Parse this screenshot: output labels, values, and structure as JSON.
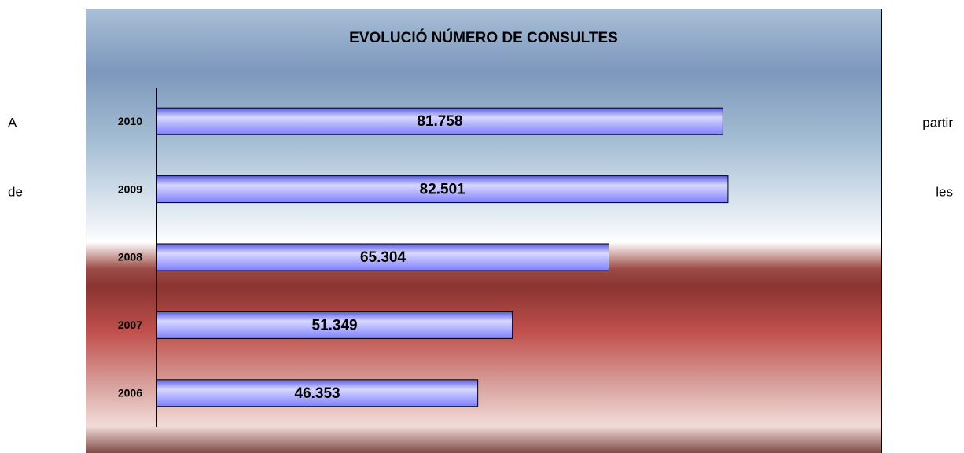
{
  "paragraph": {
    "line_1_start": "A",
    "line_1_end": "partir",
    "line_2_start": "de",
    "line_2_end": "les"
  },
  "chart_data": {
    "type": "bar",
    "orientation": "horizontal",
    "title": "EVOLUCIÓ NÚMERO DE CONSULTES",
    "categories": [
      "2010",
      "2009",
      "2008",
      "2007",
      "2006"
    ],
    "values": [
      81758,
      82501,
      65304,
      51349,
      46353
    ],
    "value_labels": [
      "81.758",
      "82.501",
      "65.304",
      "51.349",
      "46.353"
    ],
    "color": "#8080ff",
    "xlim": [
      0,
      100000
    ]
  }
}
